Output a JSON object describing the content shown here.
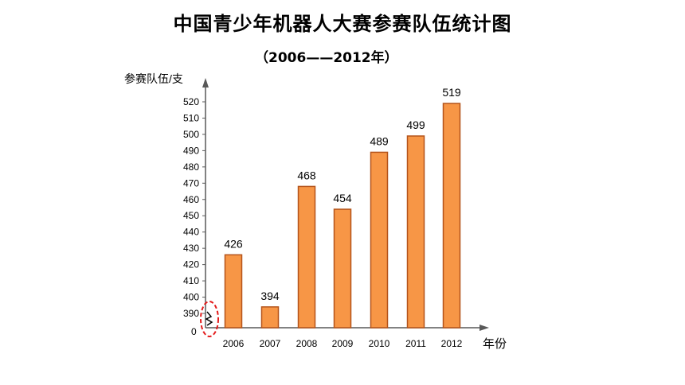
{
  "title": "中国青少年机器人大赛参赛队伍统计图",
  "subtitle": "（2006——2012年）",
  "chart_data": {
    "type": "bar",
    "title": "中国青少年机器人大赛参赛队伍统计图",
    "subtitle": "（2006——2012年）",
    "ylabel": "参赛队伍/支",
    "xlabel": "年份",
    "categories": [
      "2006",
      "2007",
      "2008",
      "2009",
      "2010",
      "2011",
      "2012"
    ],
    "values": [
      426,
      394,
      468,
      454,
      489,
      499,
      519
    ],
    "data_labels": [
      "426",
      "394",
      "468",
      "454",
      "489",
      "499",
      "519"
    ],
    "y_ticks": [
      390,
      400,
      410,
      420,
      430,
      440,
      450,
      460,
      470,
      480,
      490,
      500,
      510,
      520
    ],
    "y_zero_label": "0",
    "ylim": [
      0,
      520
    ],
    "y_axis_break": true,
    "grid": false,
    "legend": "none",
    "colors": {
      "bar_fill": "#F79646",
      "bar_stroke": "#B4531A",
      "axis": "#595959",
      "break_marker": "#E31B1B"
    }
  }
}
